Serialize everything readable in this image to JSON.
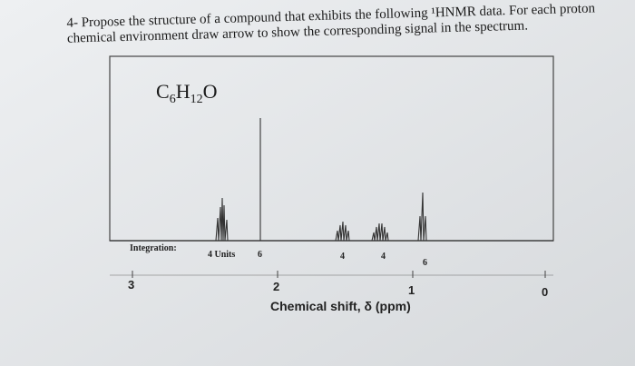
{
  "question": {
    "lines": [
      "4- Propose the structure of a compound that exhibits the following ¹HNMR data. For each proton",
      "chemical environment draw arrow to show the corresponding signal in the spectrum."
    ]
  },
  "spectrum": {
    "formula": {
      "parts": [
        "C",
        "6",
        "H",
        "12",
        "O"
      ]
    },
    "integration_label": "Integration:",
    "integration_units": "4 Units",
    "integrations": [
      6,
      4,
      4,
      6
    ],
    "axis_ticks": [
      3,
      2,
      1,
      0
    ],
    "axis_title": "Chemical shift, δ (ppm)"
  }
}
